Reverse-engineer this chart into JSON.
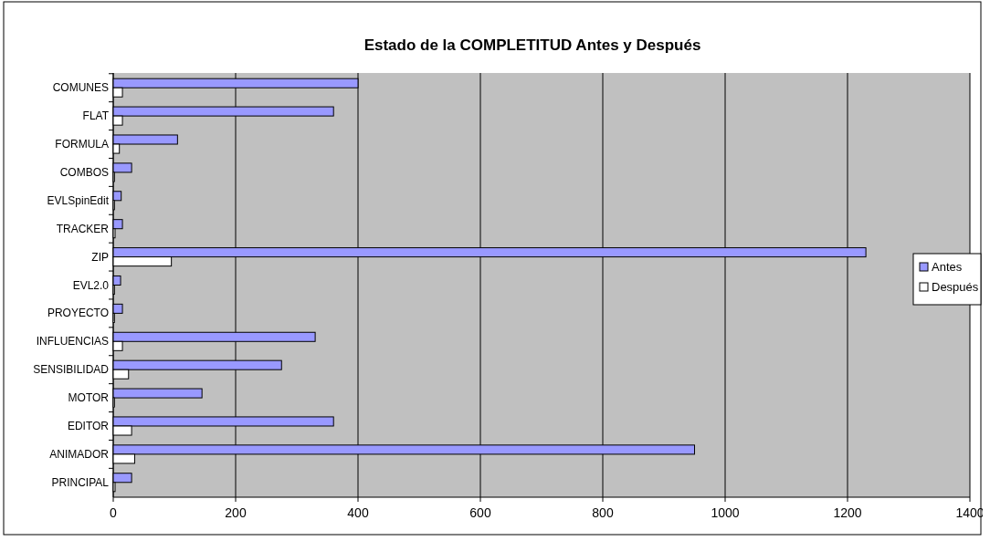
{
  "chart_data": {
    "type": "bar",
    "orientation": "horizontal",
    "title": "Estado de la COMPLETITUD Antes y Después",
    "categories": [
      "COMUNES",
      "FLAT",
      "FORMULA",
      "COMBOS",
      "EVLSpinEdit",
      "TRACKER",
      "ZIP",
      "EVL2.0",
      "PROYECTO",
      "INFLUENCIAS",
      "SENSIBILIDAD",
      "MOTOR",
      "EDITOR",
      "ANIMADOR",
      "PRINCIPAL"
    ],
    "series": [
      {
        "name": "Antes",
        "color": "#9999ff",
        "values": [
          400,
          360,
          105,
          30,
          13,
          15,
          1230,
          12,
          15,
          330,
          275,
          145,
          360,
          950,
          30
        ]
      },
      {
        "name": "Después",
        "color": "#ffffff",
        "values": [
          15,
          15,
          10,
          2,
          2,
          3,
          95,
          2,
          2,
          15,
          25,
          2,
          30,
          35,
          3
        ]
      }
    ],
    "xlim": [
      0,
      1400
    ],
    "xticks": [
      0,
      200,
      400,
      600,
      800,
      1000,
      1200,
      1400
    ],
    "grid": "x",
    "legend": "right"
  }
}
